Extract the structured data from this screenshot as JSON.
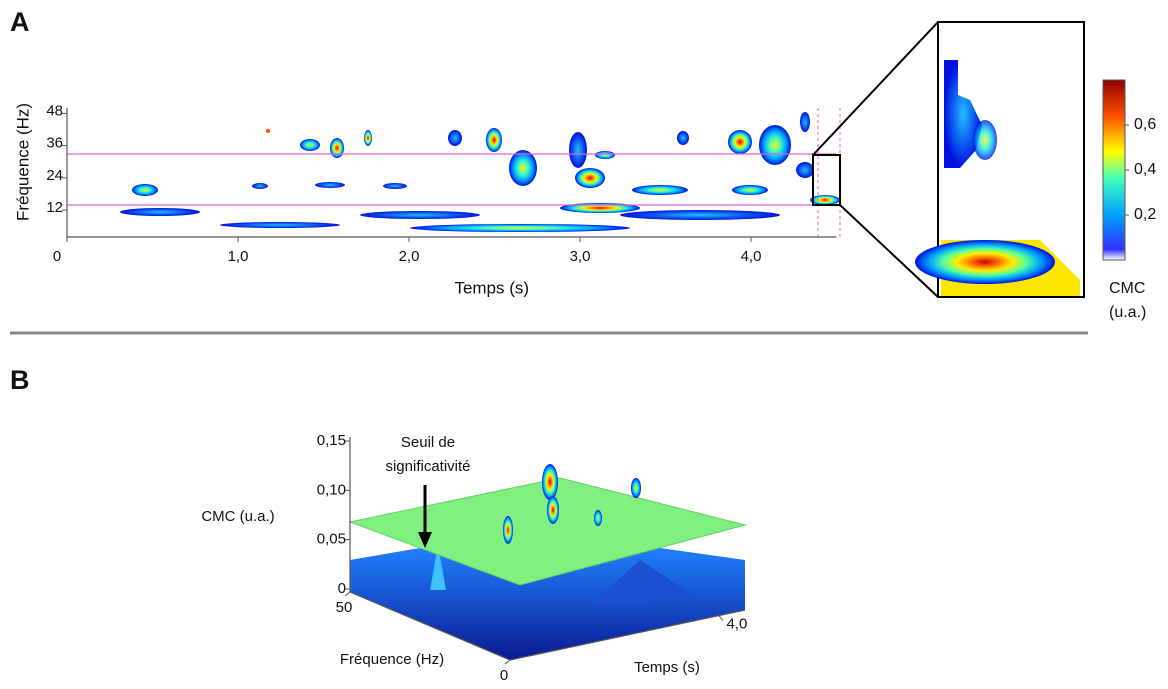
{
  "chart_data": [
    {
      "type": "heatmap",
      "panel_label": "A",
      "xlabel": "Temps (s)",
      "ylabel": "Fréquence (Hz)",
      "xlim": [
        0,
        4.5
      ],
      "xticks": [
        0,
        {
          "value": 1,
          "label": "1,0"
        },
        {
          "value": 2,
          "label": "2,0"
        },
        {
          "value": 3,
          "label": "3,0"
        },
        {
          "value": 4,
          "label": "4,0"
        }
      ],
      "ylim": [
        2,
        50
      ],
      "yticks": [
        12,
        24,
        36,
        48
      ],
      "colorbar_label": [
        "CMC",
        "(u.a.)"
      ],
      "colorbar_lim": [
        0,
        0.8
      ],
      "colorbar_ticks": [
        {
          "value": 0.2,
          "label": "0,2"
        },
        {
          "value": 0.4,
          "label": "0,4"
        },
        {
          "value": 0.6,
          "label": "0,6"
        }
      ]
    },
    {
      "type": "surface3d",
      "panel_label": "B",
      "zlabel": "CMC (u.a.)",
      "xlabel": "Temps (s)",
      "ylabel": "Fréquence (Hz)",
      "zlim": [
        0,
        0.15
      ],
      "zticks": [
        0,
        {
          "value": 0.05,
          "label": "0,05"
        },
        {
          "value": 0.1,
          "label": "0,10"
        },
        {
          "value": 0.15,
          "label": "0,15"
        }
      ],
      "xlim": [
        0,
        4.5
      ],
      "xticks": [
        {
          "value": 4,
          "label": "4,0"
        }
      ],
      "ylim": [
        0,
        50
      ],
      "yticks": [
        50,
        0
      ],
      "annotation": [
        "Seuil de",
        "significativité"
      ]
    }
  ]
}
